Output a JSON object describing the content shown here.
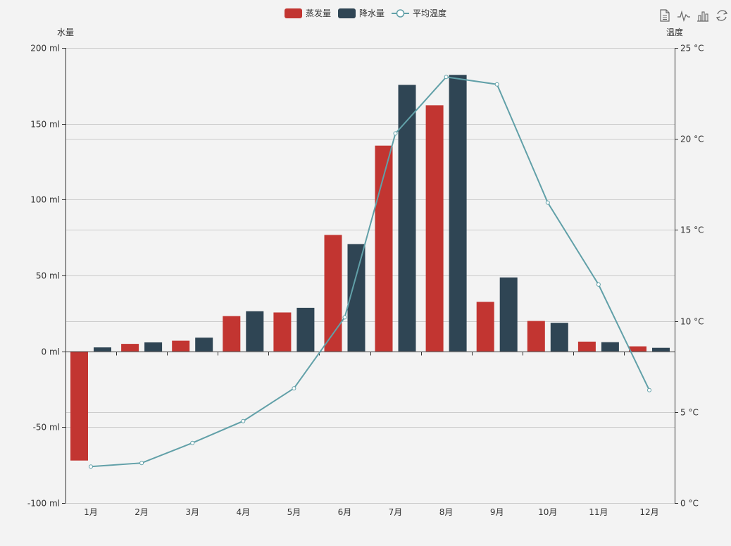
{
  "legend": {
    "items": [
      {
        "name": "蒸发量",
        "type": "bar",
        "color": "#c23531"
      },
      {
        "name": "降水量",
        "type": "bar",
        "color": "#2f4554"
      },
      {
        "name": "平均温度",
        "type": "line",
        "color": "#61a0a8"
      }
    ]
  },
  "toolbox": {
    "icons": [
      "data-view-icon",
      "line-chart-icon",
      "bar-chart-icon",
      "restore-icon"
    ]
  },
  "chart_data": {
    "type": "bar",
    "categories": [
      "1月",
      "2月",
      "3月",
      "4月",
      "5月",
      "6月",
      "7月",
      "8月",
      "9月",
      "10月",
      "11月",
      "12月"
    ],
    "series": [
      {
        "name": "蒸发量",
        "type": "bar",
        "axis": "left",
        "color": "#c23531",
        "values": [
          -72,
          4.9,
          7,
          23.2,
          25.6,
          76.7,
          135.6,
          162.2,
          32.6,
          20,
          6.4,
          3.3
        ]
      },
      {
        "name": "降水量",
        "type": "bar",
        "axis": "left",
        "color": "#2f4554",
        "values": [
          2.6,
          5.9,
          9,
          26.4,
          28.7,
          70.7,
          175.6,
          182.2,
          48.7,
          18.8,
          6,
          2.3
        ]
      },
      {
        "name": "平均温度",
        "type": "line",
        "axis": "right",
        "color": "#61a0a8",
        "values": [
          2.0,
          2.2,
          3.3,
          4.5,
          6.3,
          10.2,
          20.3,
          23.4,
          23.0,
          16.5,
          12.0,
          6.2
        ]
      }
    ],
    "y_left": {
      "label": "水量",
      "min": -100,
      "max": 200,
      "ticks": [
        -100,
        -50,
        0,
        50,
        100,
        150,
        200
      ],
      "unit": " ml"
    },
    "y_right": {
      "label": "温度",
      "min": 0,
      "max": 25,
      "ticks": [
        0,
        5,
        10,
        15,
        20,
        25
      ],
      "unit": " °C"
    },
    "grid": true,
    "legend_position": "top-center"
  }
}
